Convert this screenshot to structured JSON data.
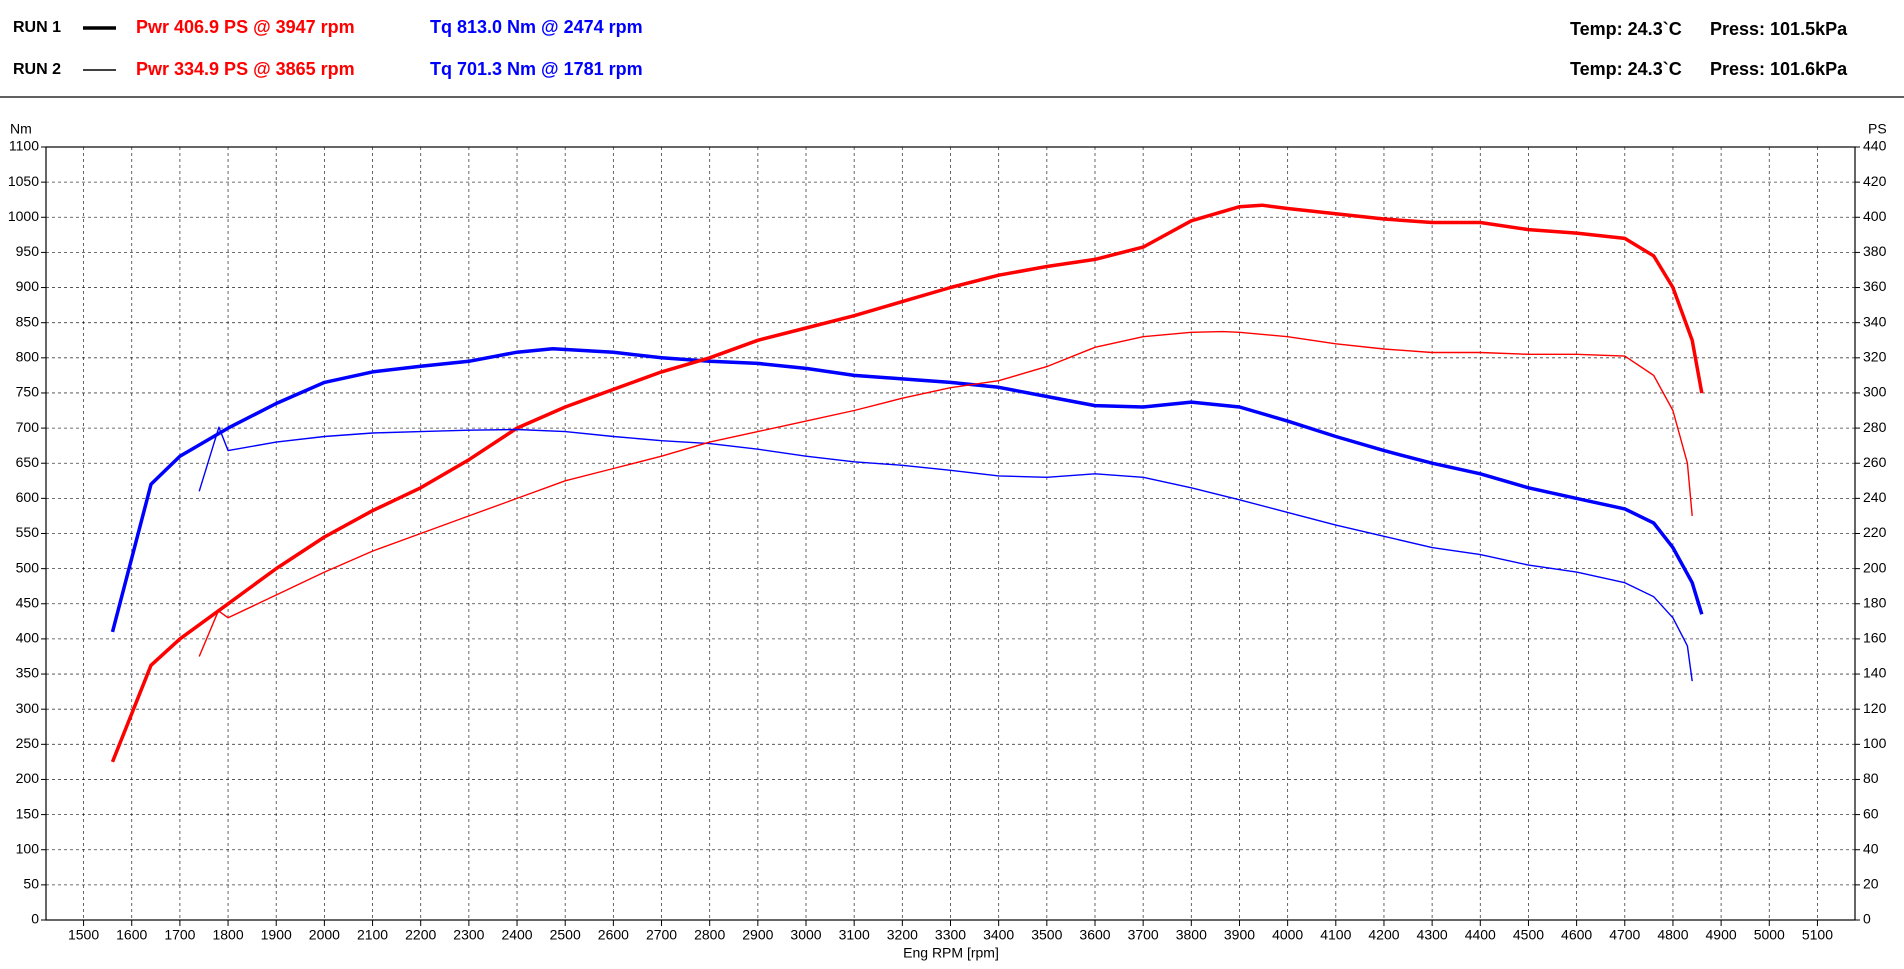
{
  "chart_data": {
    "type": "line",
    "runs": [
      {
        "label": "RUN 1",
        "power": "Pwr  406.9 PS @ 3947 rpm",
        "torque": "Tq 813.0 Nm @ 2474 rpm",
        "temp": "Temp: 24.3`C",
        "press": "Press: 101.5kPa"
      },
      {
        "label": "RUN 2",
        "power": "Pwr  334.9 PS @ 3865 rpm",
        "torque": "Tq 701.3 Nm @ 1781 rpm",
        "temp": "Temp: 24.3`C",
        "press": "Press: 101.6kPa"
      }
    ],
    "y_label": "Nm",
    "y2_label": "PS",
    "x_label": "Eng RPM [rpm]",
    "xlim": [
      1422,
      5178
    ],
    "xticks": [
      1500,
      1600,
      1700,
      1800,
      1900,
      2000,
      2100,
      2200,
      2300,
      2400,
      2500,
      2600,
      2700,
      2800,
      2900,
      3000,
      3100,
      3200,
      3300,
      3400,
      3500,
      3600,
      3700,
      3800,
      3900,
      4000,
      4100,
      4200,
      4300,
      4400,
      4500,
      4600,
      4700,
      4800,
      4900,
      5000,
      5100
    ],
    "ylim": [
      0,
      1100
    ],
    "yticks": [
      0,
      50,
      100,
      150,
      200,
      250,
      300,
      350,
      400,
      450,
      500,
      550,
      600,
      650,
      700,
      750,
      800,
      850,
      900,
      950,
      1000,
      1050,
      1100
    ],
    "y2lim": [
      0,
      440
    ],
    "y2ticks": [
      0,
      20,
      40,
      60,
      80,
      100,
      120,
      140,
      160,
      180,
      200,
      220,
      240,
      260,
      280,
      300,
      320,
      340,
      360,
      380,
      400,
      420,
      440
    ],
    "grid": true,
    "series": [
      {
        "color": "#0000ff",
        "width": 3.5,
        "x": [
          1560,
          1640,
          1700,
          1800,
          1900,
          2000,
          2100,
          2200,
          2300,
          2400,
          2474,
          2600,
          2700,
          2800,
          2900,
          3000,
          3100,
          3200,
          3300,
          3400,
          3500,
          3600,
          3700,
          3800,
          3900,
          4000,
          4100,
          4200,
          4300,
          4400,
          4500,
          4600,
          4700,
          4760,
          4800,
          4840,
          4860
        ],
        "values": [
          410,
          620,
          660,
          700,
          735,
          765,
          780,
          788,
          795,
          808,
          813,
          808,
          800,
          795,
          792,
          785,
          775,
          770,
          765,
          758,
          745,
          732,
          730,
          737,
          730,
          710,
          688,
          668,
          650,
          635,
          615,
          600,
          585,
          565,
          530,
          480,
          435
        ]
      },
      {
        "color": "#ff0000",
        "width": 3.5,
        "axis": "y2",
        "x": [
          1560,
          1640,
          1700,
          1800,
          1900,
          2000,
          2100,
          2200,
          2300,
          2400,
          2500,
          2600,
          2700,
          2800,
          2900,
          3000,
          3100,
          3200,
          3300,
          3400,
          3500,
          3600,
          3700,
          3800,
          3900,
          3947,
          4000,
          4100,
          4200,
          4300,
          4400,
          4500,
          4600,
          4700,
          4760,
          4800,
          4840,
          4860
        ],
        "values": [
          90,
          145,
          160,
          180,
          200,
          218,
          233,
          246,
          262,
          280,
          292,
          302,
          312,
          320,
          330,
          337,
          344,
          352,
          360,
          367,
          372,
          376,
          383,
          398,
          406,
          406.9,
          405,
          402,
          399,
          397,
          397,
          393,
          391,
          388,
          378,
          360,
          330,
          300
        ]
      },
      {
        "color": "#0000ff",
        "width": 1.4,
        "x": [
          1740,
          1781,
          1800,
          1900,
          2000,
          2100,
          2200,
          2300,
          2400,
          2500,
          2600,
          2700,
          2800,
          2900,
          3000,
          3100,
          3200,
          3300,
          3400,
          3500,
          3600,
          3700,
          3800,
          3900,
          4000,
          4100,
          4200,
          4300,
          4400,
          4500,
          4600,
          4700,
          4760,
          4800,
          4830,
          4840
        ],
        "values": [
          610,
          701.3,
          668,
          680,
          688,
          693,
          695,
          697,
          698,
          695,
          688,
          682,
          678,
          670,
          660,
          652,
          647,
          640,
          632,
          630,
          635,
          630,
          615,
          598,
          580,
          562,
          546,
          530,
          520,
          505,
          495,
          480,
          460,
          430,
          390,
          340
        ]
      },
      {
        "color": "#ff0000",
        "width": 1.4,
        "axis": "y2",
        "x": [
          1740,
          1780,
          1800,
          1900,
          2000,
          2100,
          2200,
          2300,
          2400,
          2500,
          2600,
          2700,
          2800,
          2900,
          3000,
          3100,
          3200,
          3300,
          3400,
          3500,
          3600,
          3700,
          3800,
          3865,
          3900,
          4000,
          4100,
          4200,
          4300,
          4400,
          4500,
          4600,
          4700,
          4760,
          4800,
          4830,
          4840
        ],
        "values": [
          150,
          176,
          172,
          185,
          198,
          210,
          220,
          230,
          240,
          250,
          257,
          264,
          272,
          278,
          284,
          290,
          297,
          303,
          307,
          315,
          326,
          332,
          334.5,
          334.9,
          334.5,
          332,
          328,
          325,
          323,
          323,
          322,
          322,
          321,
          310,
          290,
          260,
          230
        ]
      }
    ]
  }
}
